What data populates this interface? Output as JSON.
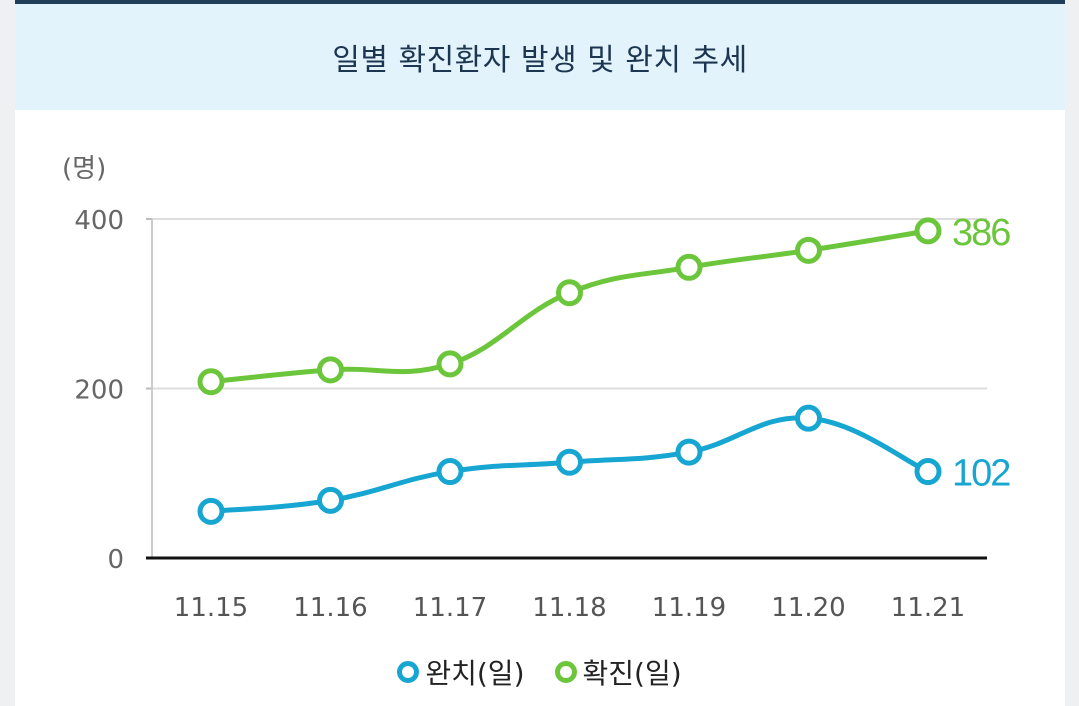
{
  "header": {
    "title": "일별 확진환자 발생 및 완치 추세"
  },
  "chart_data": {
    "type": "line",
    "title": "일별 확진환자 발생 및 완치 추세",
    "ylabel": "(명)",
    "xlabel": "",
    "ylim": [
      0,
      400
    ],
    "yticks": [
      0,
      200,
      400
    ],
    "categories": [
      "11.15",
      "11.16",
      "11.17",
      "11.18",
      "11.19",
      "11.20",
      "11.21"
    ],
    "series": [
      {
        "name": "완치(일)",
        "color": "#17a6d1",
        "values": [
          55,
          68,
          102,
          113,
          125,
          165,
          102
        ],
        "end_label": "102"
      },
      {
        "name": "확진(일)",
        "color": "#6cc63c",
        "values": [
          208,
          222,
          229,
          313,
          343,
          363,
          386
        ],
        "end_label": "386"
      }
    ],
    "grid": true,
    "legend_position": "bottom-center"
  }
}
